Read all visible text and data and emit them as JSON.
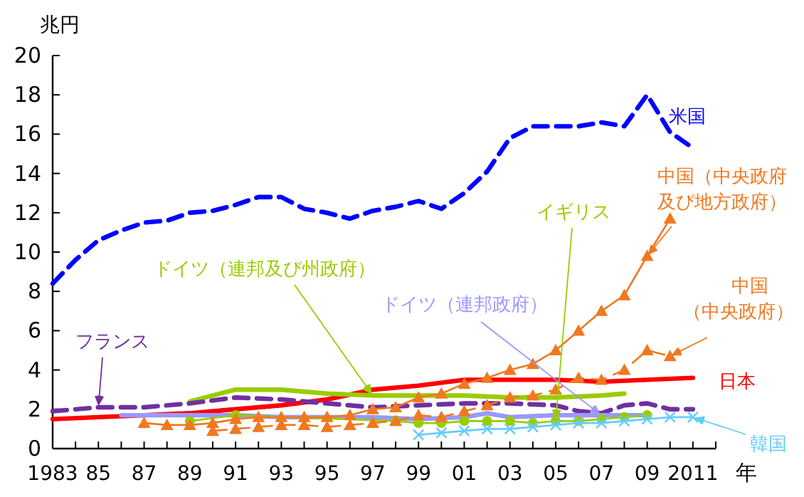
{
  "chart_data": {
    "type": "line",
    "xlabel": "年",
    "ylabel": "兆円",
    "xlim": [
      1983,
      2012
    ],
    "ylim": [
      0,
      20
    ],
    "xticks": [
      {
        "value": 1983,
        "label": "1983"
      },
      {
        "value": 1984,
        "label": null
      },
      {
        "value": 1985,
        "label": "85"
      },
      {
        "value": 1986,
        "label": null
      },
      {
        "value": 1987,
        "label": "87"
      },
      {
        "value": 1988,
        "label": null
      },
      {
        "value": 1989,
        "label": "89"
      },
      {
        "value": 1990,
        "label": null
      },
      {
        "value": 1991,
        "label": "91"
      },
      {
        "value": 1992,
        "label": null
      },
      {
        "value": 1993,
        "label": "93"
      },
      {
        "value": 1994,
        "label": null
      },
      {
        "value": 1995,
        "label": "95"
      },
      {
        "value": 1996,
        "label": null
      },
      {
        "value": 1997,
        "label": "97"
      },
      {
        "value": 1998,
        "label": null
      },
      {
        "value": 1999,
        "label": "99"
      },
      {
        "value": 2000,
        "label": null
      },
      {
        "value": 2001,
        "label": "01"
      },
      {
        "value": 2002,
        "label": null
      },
      {
        "value": 2003,
        "label": "03"
      },
      {
        "value": 2004,
        "label": null
      },
      {
        "value": 2005,
        "label": "05"
      },
      {
        "value": 2006,
        "label": null
      },
      {
        "value": 2007,
        "label": "07"
      },
      {
        "value": 2008,
        "label": null
      },
      {
        "value": 2009,
        "label": "09"
      },
      {
        "value": 2010,
        "label": null
      },
      {
        "value": 2011,
        "label": "2011"
      },
      {
        "value": 2012,
        "label": null
      }
    ],
    "yticks": [
      0,
      2,
      4,
      6,
      8,
      10,
      12,
      14,
      16,
      18,
      20
    ],
    "grid": false,
    "series": [
      {
        "name": "米国",
        "color": "#0000ff",
        "line_style": "dashed",
        "marker": "none",
        "x": [
          1983,
          1984,
          1985,
          1986,
          1987,
          1988,
          1989,
          1990,
          1991,
          1992,
          1993,
          1994,
          1995,
          1996,
          1997,
          1998,
          1999,
          2000,
          2001,
          2002,
          2003,
          2004,
          2005,
          2006,
          2007,
          2008,
          2009,
          2010,
          2011
        ],
        "values": [
          8.4,
          9.6,
          10.6,
          11.1,
          11.5,
          11.6,
          12.0,
          12.1,
          12.4,
          12.8,
          12.8,
          12.2,
          12.0,
          11.7,
          12.1,
          12.3,
          12.6,
          12.2,
          13.0,
          14.1,
          15.8,
          16.4,
          16.4,
          16.4,
          16.6,
          16.4,
          18.0,
          16.1,
          15.3
        ]
      },
      {
        "name": "日本",
        "color": "#ff0000",
        "line_style": "solid",
        "marker": "none",
        "x": [
          1983,
          1985,
          1987,
          1989,
          1991,
          1993,
          1995,
          1997,
          1999,
          2001,
          2003,
          2005,
          2007,
          2009,
          2011
        ],
        "values": [
          1.5,
          1.6,
          1.7,
          1.8,
          2.0,
          2.2,
          2.5,
          3.0,
          3.2,
          3.5,
          3.5,
          3.5,
          3.4,
          3.5,
          3.6
        ]
      },
      {
        "name": "ドイツ（連邦及び州政府）",
        "color": "#99cc00",
        "line_style": "solid",
        "marker": "none",
        "x": [
          1989,
          1991,
          1993,
          1995,
          1997,
          1999,
          2001,
          2003,
          2005,
          2007,
          2008
        ],
        "values": [
          2.4,
          3.0,
          3.0,
          2.8,
          2.7,
          2.7,
          2.7,
          2.6,
          2.6,
          2.7,
          2.8
        ]
      },
      {
        "name": "フランス",
        "color": "#7030a0",
        "line_style": "dashed",
        "marker": "none",
        "x": [
          1983,
          1985,
          1987,
          1989,
          1991,
          1993,
          1995,
          1997,
          1999,
          2001,
          2003,
          2005,
          2006,
          2007,
          2008,
          2009,
          2010,
          2011
        ],
        "values": [
          1.9,
          2.1,
          2.1,
          2.3,
          2.6,
          2.5,
          2.3,
          2.1,
          2.2,
          2.3,
          2.3,
          2.2,
          1.9,
          1.8,
          2.2,
          2.3,
          2.0,
          2.0
        ]
      },
      {
        "name": "ドイツ（連邦政府）",
        "color": "#9999ff",
        "line_style": "solid",
        "marker": "none",
        "x": [
          1986,
          1989,
          1991,
          1993,
          1995,
          1997,
          1999,
          2001,
          2002,
          2003,
          2005,
          2007,
          2009
        ],
        "values": [
          1.7,
          1.7,
          1.7,
          1.6,
          1.6,
          1.6,
          1.5,
          1.6,
          1.8,
          1.6,
          1.7,
          1.7,
          1.7
        ]
      },
      {
        "name": "イギリス",
        "color": "#99cc00",
        "line_style": "solid",
        "marker": "circle",
        "x": [
          1989,
          1991,
          1998,
          1999,
          2000,
          2001,
          2002,
          2003,
          2004,
          2005,
          2006,
          2007,
          2008,
          2009
        ],
        "values": [
          1.4,
          1.7,
          1.4,
          1.3,
          1.3,
          1.4,
          1.4,
          1.4,
          1.3,
          1.4,
          1.4,
          1.5,
          1.6,
          1.7
        ]
      },
      {
        "name": "韓国",
        "color": "#66ccff",
        "line_style": "solid",
        "marker": "cross",
        "x": [
          1999,
          2000,
          2001,
          2002,
          2003,
          2004,
          2005,
          2006,
          2007,
          2008,
          2009,
          2010,
          2011
        ],
        "values": [
          0.7,
          0.8,
          0.9,
          1.0,
          1.0,
          1.1,
          1.2,
          1.3,
          1.3,
          1.4,
          1.5,
          1.6,
          1.6
        ]
      },
      {
        "name": "中国（中央政府及び地方政府）",
        "color": "#f07820",
        "line_style": "solid",
        "marker": "triangle",
        "x": [
          1987,
          1988,
          1989,
          1990,
          1991,
          1992,
          1993,
          1994,
          1995,
          1996,
          1997,
          1998,
          1999,
          2000,
          2001,
          2002,
          2003,
          2004,
          2005,
          2006,
          2007,
          2008,
          2009,
          2010
        ],
        "values": [
          1.3,
          1.2,
          1.2,
          1.3,
          1.5,
          1.6,
          1.6,
          1.6,
          1.6,
          1.7,
          2.0,
          2.1,
          2.6,
          2.8,
          3.3,
          3.6,
          4.0,
          4.3,
          5.0,
          6.0,
          7.0,
          7.8,
          9.8,
          11.7
        ]
      },
      {
        "name": "中国（中央政府）",
        "color": "#f07820",
        "line_style": "dashed",
        "marker": "triangle",
        "x": [
          1990,
          1991,
          1992,
          1993,
          1994,
          1995,
          1996,
          1997,
          1998,
          1999,
          2000,
          2001,
          2002,
          2003,
          2004,
          2005,
          2006,
          2007,
          2008,
          2009,
          2010
        ],
        "values": [
          0.9,
          1.0,
          1.1,
          1.2,
          1.2,
          1.1,
          1.2,
          1.3,
          1.4,
          1.7,
          1.6,
          1.9,
          2.2,
          2.6,
          2.7,
          3.0,
          3.6,
          3.5,
          4.0,
          5.0,
          4.7
        ]
      }
    ]
  }
}
